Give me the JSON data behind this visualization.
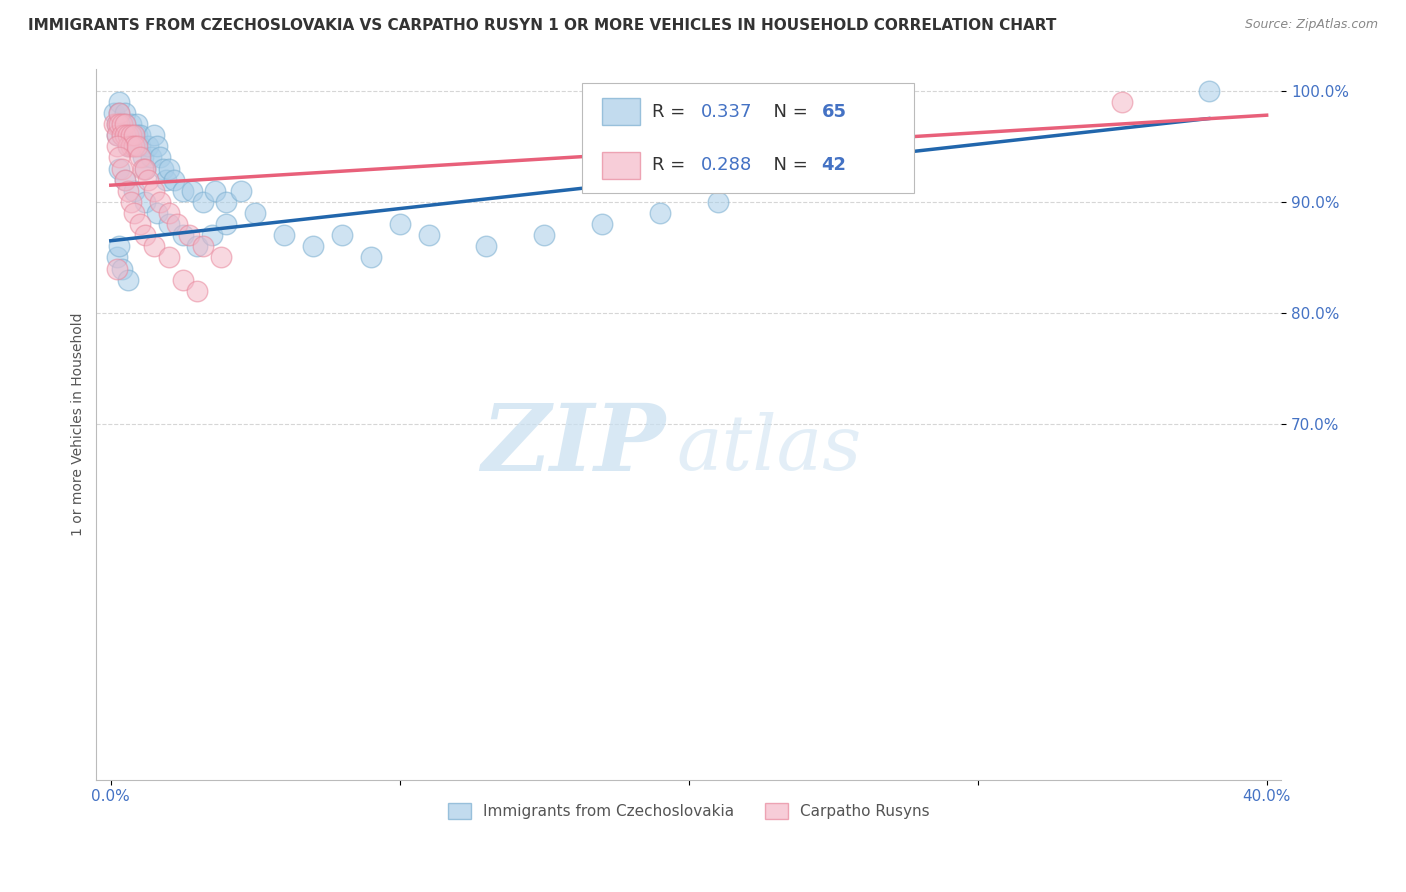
{
  "title": "IMMIGRANTS FROM CZECHOSLOVAKIA VS CARPATHO RUSYN 1 OR MORE VEHICLES IN HOUSEHOLD CORRELATION CHART",
  "source": "Source: ZipAtlas.com",
  "ylabel": "1 or more Vehicles in Household",
  "xlim": [
    -0.005,
    0.405
  ],
  "ylim": [
    0.38,
    1.02
  ],
  "xtick_labels": [
    "0.0%",
    "",
    "",
    "",
    "40.0%"
  ],
  "xtick_values": [
    0.0,
    0.1,
    0.2,
    0.3,
    0.4
  ],
  "ytick_labels": [
    "100.0%",
    "90.0%",
    "80.0%",
    "70.0%"
  ],
  "ytick_values": [
    1.0,
    0.9,
    0.8,
    0.7
  ],
  "blue_color": "#a8cde8",
  "pink_color": "#f4b8c8",
  "blue_edge_color": "#7aaed0",
  "pink_edge_color": "#e8889c",
  "blue_line_color": "#2166ac",
  "pink_line_color": "#e8607a",
  "R_blue": 0.337,
  "N_blue": 65,
  "R_pink": 0.288,
  "N_pink": 42,
  "legend_label_blue": "Immigrants from Czechoslovakia",
  "legend_label_pink": "Carpatho Rusyns",
  "watermark_zip": "ZIP",
  "watermark_atlas": "atlas",
  "blue_line_x": [
    0.0,
    0.38
  ],
  "blue_line_y": [
    0.865,
    0.975
  ],
  "pink_line_x": [
    0.0,
    0.4
  ],
  "pink_line_y": [
    0.915,
    0.978
  ],
  "blue_x": [
    0.001,
    0.002,
    0.002,
    0.003,
    0.003,
    0.003,
    0.004,
    0.004,
    0.005,
    0.005,
    0.006,
    0.006,
    0.007,
    0.007,
    0.008,
    0.008,
    0.009,
    0.009,
    0.01,
    0.01,
    0.011,
    0.012,
    0.013,
    0.014,
    0.015,
    0.016,
    0.017,
    0.018,
    0.019,
    0.02,
    0.022,
    0.025,
    0.028,
    0.032,
    0.036,
    0.04,
    0.045,
    0.05,
    0.06,
    0.07,
    0.08,
    0.09,
    0.1,
    0.11,
    0.13,
    0.15,
    0.17,
    0.19,
    0.21,
    0.24,
    0.003,
    0.005,
    0.008,
    0.012,
    0.016,
    0.02,
    0.025,
    0.03,
    0.035,
    0.04,
    0.002,
    0.004,
    0.006,
    0.003,
    0.38
  ],
  "blue_y": [
    0.98,
    0.97,
    0.96,
    0.99,
    0.98,
    0.97,
    0.97,
    0.96,
    0.98,
    0.97,
    0.96,
    0.95,
    0.97,
    0.96,
    0.96,
    0.95,
    0.97,
    0.96,
    0.96,
    0.95,
    0.94,
    0.93,
    0.95,
    0.94,
    0.96,
    0.95,
    0.94,
    0.93,
    0.92,
    0.93,
    0.92,
    0.91,
    0.91,
    0.9,
    0.91,
    0.9,
    0.91,
    0.89,
    0.87,
    0.86,
    0.87,
    0.85,
    0.88,
    0.87,
    0.86,
    0.87,
    0.88,
    0.89,
    0.9,
    0.92,
    0.93,
    0.92,
    0.91,
    0.9,
    0.89,
    0.88,
    0.87,
    0.86,
    0.87,
    0.88,
    0.85,
    0.84,
    0.83,
    0.86,
    1.0
  ],
  "pink_x": [
    0.001,
    0.002,
    0.002,
    0.003,
    0.003,
    0.004,
    0.004,
    0.005,
    0.005,
    0.006,
    0.006,
    0.007,
    0.007,
    0.008,
    0.008,
    0.009,
    0.01,
    0.011,
    0.012,
    0.013,
    0.015,
    0.017,
    0.02,
    0.023,
    0.027,
    0.032,
    0.038,
    0.002,
    0.003,
    0.004,
    0.005,
    0.006,
    0.007,
    0.008,
    0.01,
    0.012,
    0.015,
    0.02,
    0.025,
    0.03,
    0.002,
    0.35
  ],
  "pink_y": [
    0.97,
    0.97,
    0.96,
    0.98,
    0.97,
    0.97,
    0.96,
    0.97,
    0.96,
    0.96,
    0.95,
    0.96,
    0.95,
    0.96,
    0.95,
    0.95,
    0.94,
    0.93,
    0.93,
    0.92,
    0.91,
    0.9,
    0.89,
    0.88,
    0.87,
    0.86,
    0.85,
    0.95,
    0.94,
    0.93,
    0.92,
    0.91,
    0.9,
    0.89,
    0.88,
    0.87,
    0.86,
    0.85,
    0.83,
    0.82,
    0.84,
    0.99
  ]
}
